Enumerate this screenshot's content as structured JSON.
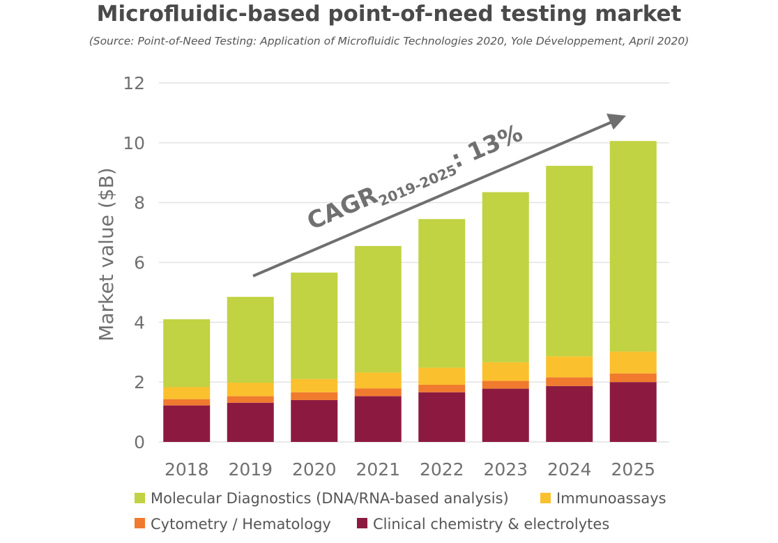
{
  "colors": {
    "molecular": "#c1d243",
    "immuno": "#fbc02d",
    "cytometry": "#f07a2e",
    "clinical": "#8c1a40",
    "grid": "#e2e2e2",
    "arrow": "#6f6f6f"
  },
  "chart_data": {
    "type": "bar",
    "stacked": true,
    "title": "Microfluidic-based point-of-need testing market",
    "subtitle": "(Source: Point-of-Need Testing: Application of Microfluidic Technologies 2020, Yole Développement, April 2020)",
    "xlabel": "",
    "ylabel": "Market value ($B)",
    "ylim": [
      0,
      12
    ],
    "yticks": [
      "0",
      "2",
      "4",
      "6",
      "8",
      "10",
      "12"
    ],
    "grid": true,
    "legend_position": "bottom",
    "categories": [
      "2018",
      "2019",
      "2020",
      "2021",
      "2022",
      "2023",
      "2024",
      "2025"
    ],
    "series": [
      {
        "name": "Clinical chemistry & electrolytes",
        "key": "clinical",
        "values": [
          1.22,
          1.31,
          1.4,
          1.53,
          1.66,
          1.78,
          1.87,
          2.0
        ]
      },
      {
        "name": "Cytometry / Hematology",
        "key": "cytometry",
        "values": [
          0.21,
          0.22,
          0.26,
          0.26,
          0.25,
          0.26,
          0.29,
          0.29
        ]
      },
      {
        "name": "Immunoassays",
        "key": "immuno",
        "values": [
          0.4,
          0.45,
          0.44,
          0.53,
          0.57,
          0.62,
          0.7,
          0.73
        ]
      },
      {
        "name": "Molecular Diagnostics (DNA/RNA-based analysis)",
        "key": "molecular",
        "values": [
          2.27,
          2.87,
          3.56,
          4.23,
          4.97,
          5.69,
          6.37,
          7.04
        ]
      }
    ],
    "annotation": {
      "main": "CAGR",
      "sub": "2019-2025",
      "suffix": ": 13%"
    }
  }
}
